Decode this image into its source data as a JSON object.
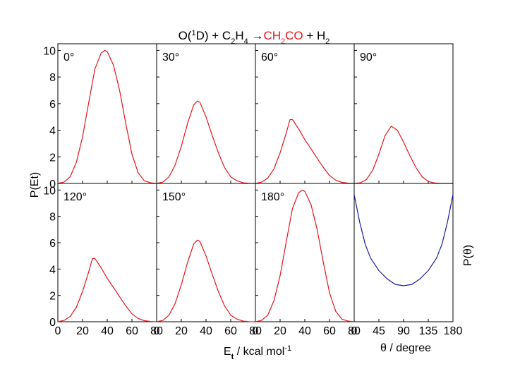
{
  "title": {
    "parts": [
      {
        "t": "O(",
        "c": "#000000"
      },
      {
        "t": "1",
        "c": "#000000",
        "sup": true
      },
      {
        "t": "D) + C",
        "c": "#000000"
      },
      {
        "t": "2",
        "c": "#000000",
        "sub": true
      },
      {
        "t": "H",
        "c": "#000000"
      },
      {
        "t": "4",
        "c": "#000000",
        "sub": true
      },
      {
        "t": " →",
        "c": "#000000"
      },
      {
        "t": "CH",
        "c": "#e8141b"
      },
      {
        "t": "2",
        "c": "#e8141b",
        "sub": true
      },
      {
        "t": "CO",
        "c": "#e8141b"
      },
      {
        "t": " + H",
        "c": "#000000"
      },
      {
        "t": "2",
        "c": "#000000",
        "sub": true
      }
    ]
  },
  "left_ylabel": "P(Et)",
  "right_ylabel": "P(θ)",
  "xlabel_energy": {
    "main": "E",
    "sub": "t",
    "rest": " / kcal mol",
    "sup": "-1"
  },
  "xlabel_angle": "θ / degree",
  "colors": {
    "energy": "#e8141b",
    "angle": "#1a1aa8",
    "frame": "#000000"
  },
  "chart_data": [
    {
      "type": "line",
      "panel": "0°",
      "label": "0°",
      "xlim": [
        0,
        80
      ],
      "ylim": [
        0,
        10.5
      ],
      "xticks": [
        0,
        20,
        40,
        60,
        80
      ],
      "yticks": [
        0,
        2,
        4,
        6,
        8,
        10
      ],
      "show_xticks": false,
      "show_yticks": true,
      "series": [
        {
          "x": [
            0,
            5,
            10,
            15,
            20,
            25,
            30,
            35,
            38,
            40,
            45,
            50,
            55,
            60,
            65,
            70,
            75,
            80
          ],
          "y": [
            0,
            0.1,
            0.5,
            1.6,
            3.5,
            6.1,
            8.6,
            9.8,
            10.0,
            9.9,
            8.9,
            7.0,
            4.5,
            2.2,
            0.8,
            0.2,
            0.05,
            0
          ]
        }
      ]
    },
    {
      "type": "line",
      "panel": "30°",
      "label": "30°",
      "xlim": [
        0,
        80
      ],
      "ylim": [
        0,
        10.5
      ],
      "xticks": [
        0,
        20,
        40,
        60,
        80
      ],
      "yticks": [
        0,
        2,
        4,
        6,
        8,
        10
      ],
      "show_xticks": false,
      "show_yticks": false,
      "series": [
        {
          "x": [
            0,
            5,
            10,
            15,
            20,
            25,
            30,
            33,
            35,
            40,
            45,
            50,
            55,
            60,
            65,
            70,
            75,
            80
          ],
          "y": [
            0,
            0.1,
            0.5,
            1.4,
            2.8,
            4.5,
            5.9,
            6.2,
            6.1,
            5.0,
            3.6,
            2.3,
            1.2,
            0.5,
            0.2,
            0.05,
            0.01,
            0
          ]
        }
      ]
    },
    {
      "type": "line",
      "panel": "60°",
      "label": "60°",
      "xlim": [
        0,
        80
      ],
      "ylim": [
        0,
        10.5
      ],
      "xticks": [
        0,
        20,
        40,
        60,
        80
      ],
      "yticks": [
        0,
        2,
        4,
        6,
        8,
        10
      ],
      "show_xticks": false,
      "show_yticks": false,
      "series": [
        {
          "x": [
            0,
            5,
            10,
            15,
            20,
            25,
            28,
            30,
            35,
            40,
            45,
            50,
            55,
            60,
            65,
            70,
            75,
            80
          ],
          "y": [
            0,
            0.1,
            0.4,
            1.1,
            2.3,
            3.8,
            4.8,
            4.8,
            4.1,
            3.3,
            2.6,
            1.9,
            1.2,
            0.6,
            0.25,
            0.08,
            0.02,
            0
          ]
        }
      ]
    },
    {
      "type": "line",
      "panel": "90°",
      "label": "90°",
      "xlim": [
        0,
        80
      ],
      "ylim": [
        0,
        10.5
      ],
      "xticks": [
        0,
        20,
        40,
        60,
        80
      ],
      "yticks": [
        0,
        2,
        4,
        6,
        8,
        10
      ],
      "show_xticks": false,
      "show_yticks": false,
      "series": [
        {
          "x": [
            0,
            5,
            10,
            15,
            20,
            25,
            30,
            35,
            40,
            45,
            50,
            55,
            60,
            65,
            70,
            75,
            80
          ],
          "y": [
            0,
            0.05,
            0.3,
            1.0,
            2.2,
            3.6,
            4.3,
            4.0,
            3.1,
            2.1,
            1.2,
            0.5,
            0.15,
            0.03,
            0,
            0,
            0
          ]
        }
      ]
    },
    {
      "type": "line",
      "panel": "120°",
      "label": "120°",
      "xlim": [
        0,
        80
      ],
      "ylim": [
        0,
        10.5
      ],
      "xticks": [
        0,
        20,
        40,
        60,
        80
      ],
      "yticks": [
        0,
        2,
        4,
        6,
        8,
        10
      ],
      "show_xticks": true,
      "show_yticks": true,
      "series": [
        {
          "x": [
            0,
            5,
            10,
            15,
            20,
            25,
            28,
            30,
            35,
            40,
            45,
            50,
            55,
            60,
            65,
            70,
            75,
            80
          ],
          "y": [
            0,
            0.1,
            0.4,
            1.1,
            2.3,
            3.8,
            4.8,
            4.8,
            4.1,
            3.3,
            2.6,
            1.9,
            1.2,
            0.6,
            0.25,
            0.08,
            0.02,
            0
          ]
        }
      ]
    },
    {
      "type": "line",
      "panel": "150°",
      "label": "150°",
      "xlim": [
        0,
        80
      ],
      "ylim": [
        0,
        10.5
      ],
      "xticks": [
        0,
        20,
        40,
        60,
        80
      ],
      "yticks": [
        0,
        2,
        4,
        6,
        8,
        10
      ],
      "show_xticks": true,
      "show_yticks": false,
      "series": [
        {
          "x": [
            0,
            5,
            10,
            15,
            20,
            25,
            30,
            33,
            35,
            40,
            45,
            50,
            55,
            60,
            65,
            70,
            75,
            80
          ],
          "y": [
            0,
            0.1,
            0.5,
            1.4,
            2.8,
            4.5,
            5.9,
            6.2,
            6.1,
            5.0,
            3.6,
            2.3,
            1.2,
            0.5,
            0.2,
            0.05,
            0.01,
            0
          ]
        }
      ]
    },
    {
      "type": "line",
      "panel": "180°",
      "label": "180°",
      "xlim": [
        0,
        80
      ],
      "ylim": [
        0,
        10.5
      ],
      "xticks": [
        0,
        20,
        40,
        60,
        80
      ],
      "yticks": [
        0,
        2,
        4,
        6,
        8,
        10
      ],
      "show_xticks": true,
      "show_yticks": false,
      "series": [
        {
          "x": [
            0,
            5,
            10,
            15,
            20,
            25,
            30,
            35,
            38,
            40,
            45,
            50,
            55,
            60,
            65,
            70,
            75,
            80
          ],
          "y": [
            0,
            0.1,
            0.5,
            1.6,
            3.5,
            6.1,
            8.6,
            9.8,
            10.0,
            9.9,
            8.9,
            7.0,
            4.5,
            2.2,
            0.8,
            0.2,
            0.05,
            0
          ]
        }
      ]
    },
    {
      "type": "line",
      "panel": "angular",
      "label": "",
      "xlim": [
        0,
        180
      ],
      "ylim": [
        0,
        1
      ],
      "xticks": [
        0,
        45,
        90,
        135,
        180
      ],
      "yticks": [],
      "show_xticks": true,
      "show_yticks": false,
      "series": [
        {
          "x": [
            0,
            10,
            20,
            30,
            45,
            60,
            75,
            90,
            105,
            120,
            135,
            150,
            160,
            170,
            180
          ],
          "y": [
            0.92,
            0.72,
            0.56,
            0.46,
            0.37,
            0.31,
            0.27,
            0.26,
            0.27,
            0.31,
            0.37,
            0.46,
            0.56,
            0.72,
            0.92
          ]
        }
      ]
    }
  ]
}
